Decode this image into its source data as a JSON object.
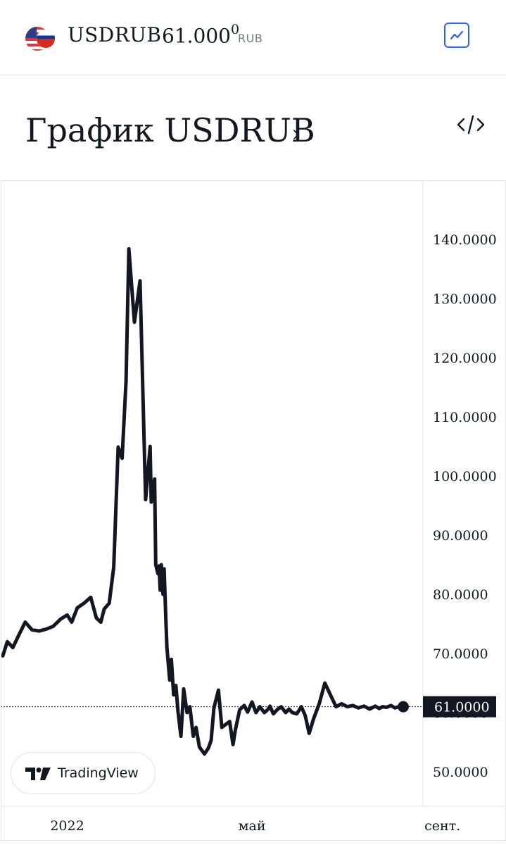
{
  "header": {
    "flag_icon": "us-ru-flag-icon",
    "symbol": "USDRUB",
    "price_main": "61.000",
    "price_tail": "0",
    "currency": "RUB",
    "chart_button_icon": "line-chart-icon"
  },
  "section": {
    "title": "График USDRUB",
    "chevron": "›",
    "embed_icon": "code-icon"
  },
  "badge": {
    "label": "TradingView"
  },
  "colors": {
    "line": "#131722",
    "accent": "#2962ff",
    "grid_border": "#e0e3eb",
    "label_bg": "#131722"
  },
  "chart_data": {
    "type": "line",
    "title": "",
    "xlabel": "",
    "ylabel": "",
    "ylim": [
      44.17,
      150.0
    ],
    "grid": false,
    "y_ticks": [
      "50.0000",
      "60.0000",
      "70.0000",
      "80.0000",
      "90.0000",
      "100.0000",
      "110.0000",
      "120.0000",
      "130.0000",
      "140.0000"
    ],
    "x_ticks": [
      {
        "label": "2022",
        "x": 2022.0
      },
      {
        "label": "май",
        "x": 2022.33
      },
      {
        "label": "сент.",
        "x": 2022.67
      }
    ],
    "last_value": 61.0,
    "last_value_label": "61.0000",
    "series": [
      {
        "x": [
          2021.885,
          2021.893,
          2021.903,
          2021.913,
          2021.925,
          2021.937,
          2021.95,
          2021.962,
          2021.975,
          2021.988,
          2022.0,
          2022.008,
          2022.018,
          2022.03,
          2022.042,
          2022.052,
          2022.06,
          2022.066,
          2022.075,
          2022.083,
          2022.091,
          2022.098,
          2022.105,
          2022.11,
          2022.12,
          2022.13,
          2022.14,
          2022.148,
          2022.15,
          2022.156,
          2022.158,
          2022.162,
          2022.164,
          2022.166,
          2022.168,
          2022.171,
          2022.173,
          2022.176,
          2022.178,
          2022.183,
          2022.186,
          2022.19,
          2022.194,
          2022.198,
          2022.203,
          2022.208,
          2022.214,
          2022.219,
          2022.225,
          2022.23,
          2022.236,
          2022.245,
          2022.252,
          2022.257,
          2022.262,
          2022.27,
          2022.276,
          2022.283,
          2022.29,
          2022.296,
          2022.3,
          2022.308,
          2022.316,
          2022.322,
          2022.33,
          2022.337,
          2022.344,
          2022.352,
          2022.358,
          2022.362,
          2022.368,
          2022.375,
          2022.382,
          2022.39,
          2022.396,
          2022.402,
          2022.41,
          2022.418,
          2022.425,
          2022.432,
          2022.44,
          2022.45,
          2022.46,
          2022.47,
          2022.48,
          2022.49,
          2022.5,
          2022.51,
          2022.52,
          2022.53,
          2022.54,
          2022.55,
          2022.557,
          2022.563,
          2022.57,
          2022.578,
          2022.585,
          2022.592,
          2022.6
        ],
        "y": [
          69.6,
          72.0,
          71.0,
          73.0,
          75.3,
          74.0,
          73.8,
          74.1,
          74.6,
          75.8,
          76.5,
          75.3,
          77.7,
          78.5,
          79.5,
          76.0,
          75.3,
          77.5,
          78.5,
          84.6,
          104.9,
          103.0,
          116.0,
          138.4,
          126.0,
          133.0,
          96.0,
          105.0,
          95.6,
          99.5,
          85.0,
          83.5,
          84.8,
          80.7,
          85.0,
          80.0,
          84.3,
          76.0,
          71.0,
          65.5,
          69.0,
          63.0,
          64.6,
          60.0,
          56.0,
          64.0,
          60.0,
          61.0,
          56.0,
          57.5,
          54.2,
          53.0,
          54.0,
          55.3,
          60.8,
          63.8,
          57.5,
          58.0,
          58.5,
          54.6,
          57.0,
          60.5,
          61.2,
          60.1,
          61.8,
          60.0,
          61.0,
          60.0,
          60.5,
          61.1,
          59.8,
          60.5,
          61.0,
          60.0,
          60.6,
          60.0,
          59.8,
          61.0,
          59.5,
          56.5,
          59.0,
          61.5,
          65.0,
          63.0,
          61.0,
          61.5,
          61.0,
          61.2,
          60.8,
          61.1,
          60.6,
          61.1,
          60.7,
          61.0,
          60.9,
          61.2,
          60.8,
          61.0,
          61.0
        ]
      }
    ]
  }
}
